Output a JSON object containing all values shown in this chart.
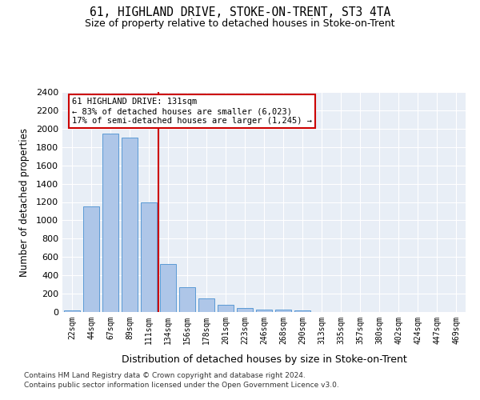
{
  "title1": "61, HIGHLAND DRIVE, STOKE-ON-TRENT, ST3 4TA",
  "title2": "Size of property relative to detached houses in Stoke-on-Trent",
  "xlabel": "Distribution of detached houses by size in Stoke-on-Trent",
  "ylabel": "Number of detached properties",
  "categories": [
    "22sqm",
    "44sqm",
    "67sqm",
    "89sqm",
    "111sqm",
    "134sqm",
    "156sqm",
    "178sqm",
    "201sqm",
    "223sqm",
    "246sqm",
    "268sqm",
    "290sqm",
    "313sqm",
    "335sqm",
    "357sqm",
    "380sqm",
    "402sqm",
    "424sqm",
    "447sqm",
    "469sqm"
  ],
  "values": [
    20,
    1150,
    1950,
    1900,
    1200,
    520,
    270,
    150,
    75,
    40,
    30,
    30,
    15,
    2,
    2,
    1,
    1,
    1,
    0,
    0,
    0
  ],
  "bar_color": "#aec6e8",
  "bar_edge_color": "#5b9bd5",
  "vline_color": "#cc0000",
  "annotation_text": "61 HIGHLAND DRIVE: 131sqm\n← 83% of detached houses are smaller (6,023)\n17% of semi-detached houses are larger (1,245) →",
  "annotation_box_color": "#ffffff",
  "annotation_box_edge": "#cc0000",
  "bg_color": "#e8eef6",
  "footer1": "Contains HM Land Registry data © Crown copyright and database right 2024.",
  "footer2": "Contains public sector information licensed under the Open Government Licence v3.0.",
  "ylim": [
    0,
    2400
  ],
  "yticks": [
    0,
    200,
    400,
    600,
    800,
    1000,
    1200,
    1400,
    1600,
    1800,
    2000,
    2200,
    2400
  ]
}
